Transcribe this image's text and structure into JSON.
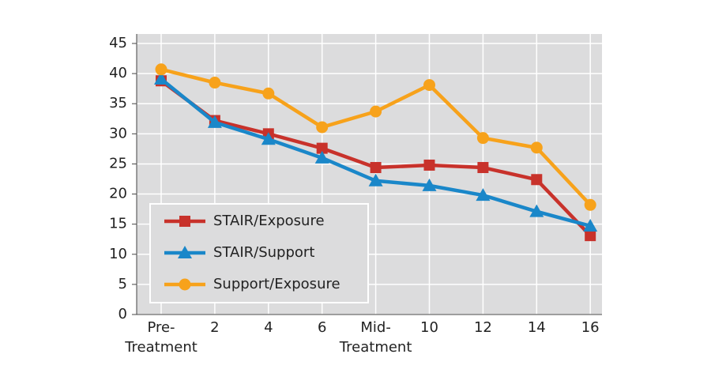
{
  "chart_data": {
    "type": "line",
    "categories": [
      "Pre-\nTreatment",
      "2",
      "4",
      "6",
      "Mid-\nTreatment",
      "10",
      "12",
      "14",
      "16"
    ],
    "series": [
      {
        "name": "STAIR/Exposure",
        "color": "#c8322b",
        "marker": "square",
        "values": [
          38.8,
          32.2,
          30.0,
          27.6,
          24.4,
          24.8,
          24.4,
          22.4,
          13.1
        ]
      },
      {
        "name": "STAIR/Support",
        "color": "#1a87c9",
        "marker": "triangle",
        "values": [
          39.1,
          31.9,
          29.1,
          26.0,
          22.2,
          21.4,
          19.8,
          17.1,
          14.7
        ]
      },
      {
        "name": "Support/Exposure",
        "color": "#f7a21b",
        "marker": "circle",
        "values": [
          40.7,
          38.5,
          36.7,
          31.1,
          33.7,
          38.1,
          29.3,
          27.7,
          18.2
        ]
      }
    ],
    "ylim": [
      0,
      45
    ],
    "yticks": [
      0,
      5,
      10,
      15,
      20,
      25,
      30,
      35,
      40,
      45
    ],
    "grid": true,
    "legend": "lower left"
  }
}
